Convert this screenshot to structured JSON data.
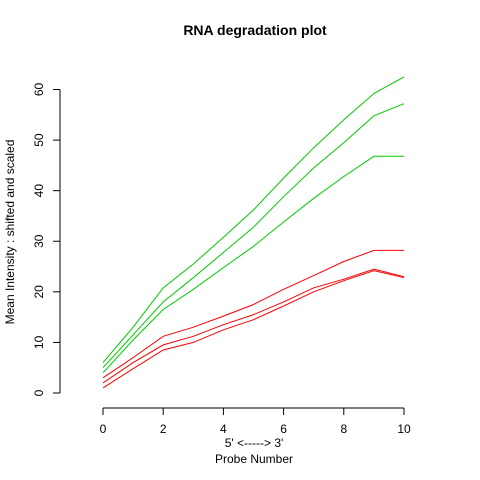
{
  "chart_data": {
    "type": "line",
    "title": "RNA degradation plot",
    "xlabel_line1": "5' <-----> 3'",
    "xlabel_line2": "Probe Number",
    "ylabel": "Mean Intensity : shifted and scaled",
    "xlim": [
      0,
      10
    ],
    "ylim": [
      0,
      62.5
    ],
    "xticks": [
      0,
      2,
      4,
      6,
      8,
      10
    ],
    "yticks": [
      0,
      10,
      20,
      30,
      40,
      50,
      60
    ],
    "grid": false,
    "x": [
      0,
      1,
      2,
      3,
      4,
      5,
      6,
      7,
      8,
      9,
      10
    ],
    "series": [
      {
        "color": "#00cc00",
        "values": [
          6.0,
          13.0,
          20.8,
          25.5,
          30.8,
          36.2,
          42.5,
          48.5,
          54.0,
          59.2,
          62.5
        ]
      },
      {
        "color": "#00cc00",
        "values": [
          5.0,
          11.5,
          18.0,
          22.8,
          27.8,
          32.8,
          38.8,
          44.5,
          49.5,
          54.8,
          57.2
        ]
      },
      {
        "color": "#00cc00",
        "values": [
          4.0,
          10.5,
          16.5,
          20.5,
          24.8,
          29.0,
          33.8,
          38.5,
          42.8,
          46.8,
          46.8
        ]
      },
      {
        "color": "#ff0000",
        "values": [
          3.0,
          7.0,
          11.2,
          13.0,
          15.2,
          17.5,
          20.5,
          23.2,
          26.0,
          28.2,
          28.2
        ]
      },
      {
        "color": "#ff0000",
        "values": [
          2.0,
          6.0,
          9.5,
          11.2,
          13.5,
          15.5,
          18.0,
          20.8,
          22.5,
          24.5,
          23.0
        ]
      },
      {
        "color": "#ff0000",
        "values": [
          1.0,
          4.8,
          8.5,
          10.0,
          12.5,
          14.5,
          17.2,
          20.0,
          22.2,
          24.2,
          22.8
        ]
      }
    ]
  }
}
